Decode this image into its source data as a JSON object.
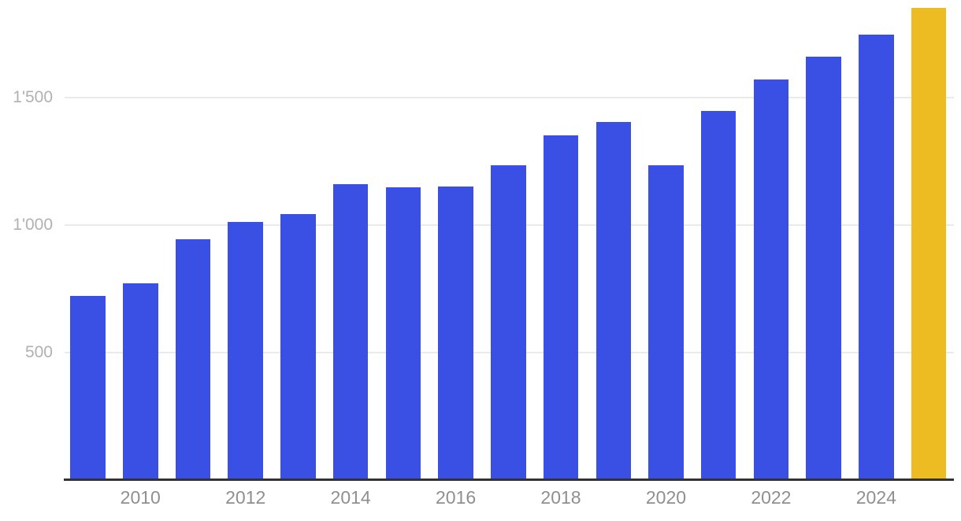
{
  "chart_data": {
    "type": "bar",
    "categories": [
      "2009",
      "2010",
      "2011",
      "2012",
      "2013",
      "2014",
      "2015",
      "2016",
      "2017",
      "2018",
      "2019",
      "2020",
      "2021",
      "2022",
      "2023",
      "2024",
      "2025"
    ],
    "values": [
      722,
      771,
      944,
      1011,
      1043,
      1161,
      1147,
      1150,
      1235,
      1351,
      1403,
      1233,
      1448,
      1569,
      1659,
      1747,
      1850
    ],
    "title": "",
    "xlabel": "",
    "ylabel": "",
    "ylim": [
      0,
      1880
    ],
    "grid": "horizontal",
    "legend": "none",
    "bar_color": "#3A50E4",
    "highlight": {
      "category": "2025",
      "index": 16,
      "color": "#ECBC22"
    },
    "y_ticks": [
      {
        "value": 500,
        "label": "500"
      },
      {
        "value": 1000,
        "label": "1'000"
      },
      {
        "value": 1500,
        "label": "1'500"
      }
    ],
    "x_tick_labels": [
      {
        "category_index": 1,
        "label": "2010"
      },
      {
        "category_index": 3,
        "label": "2012"
      },
      {
        "category_index": 5,
        "label": "2014"
      },
      {
        "category_index": 7,
        "label": "2016"
      },
      {
        "category_index": 9,
        "label": "2018"
      },
      {
        "category_index": 11,
        "label": "2020"
      },
      {
        "category_index": 13,
        "label": "2022"
      },
      {
        "category_index": 15,
        "label": "2024"
      }
    ],
    "colors": {
      "background": "#FFFFFF",
      "gridline": "#EAEAEA",
      "axis_line": "#333333",
      "y_tick_label": "#B1B1B1",
      "x_tick_label": "#8F8F8F"
    }
  }
}
